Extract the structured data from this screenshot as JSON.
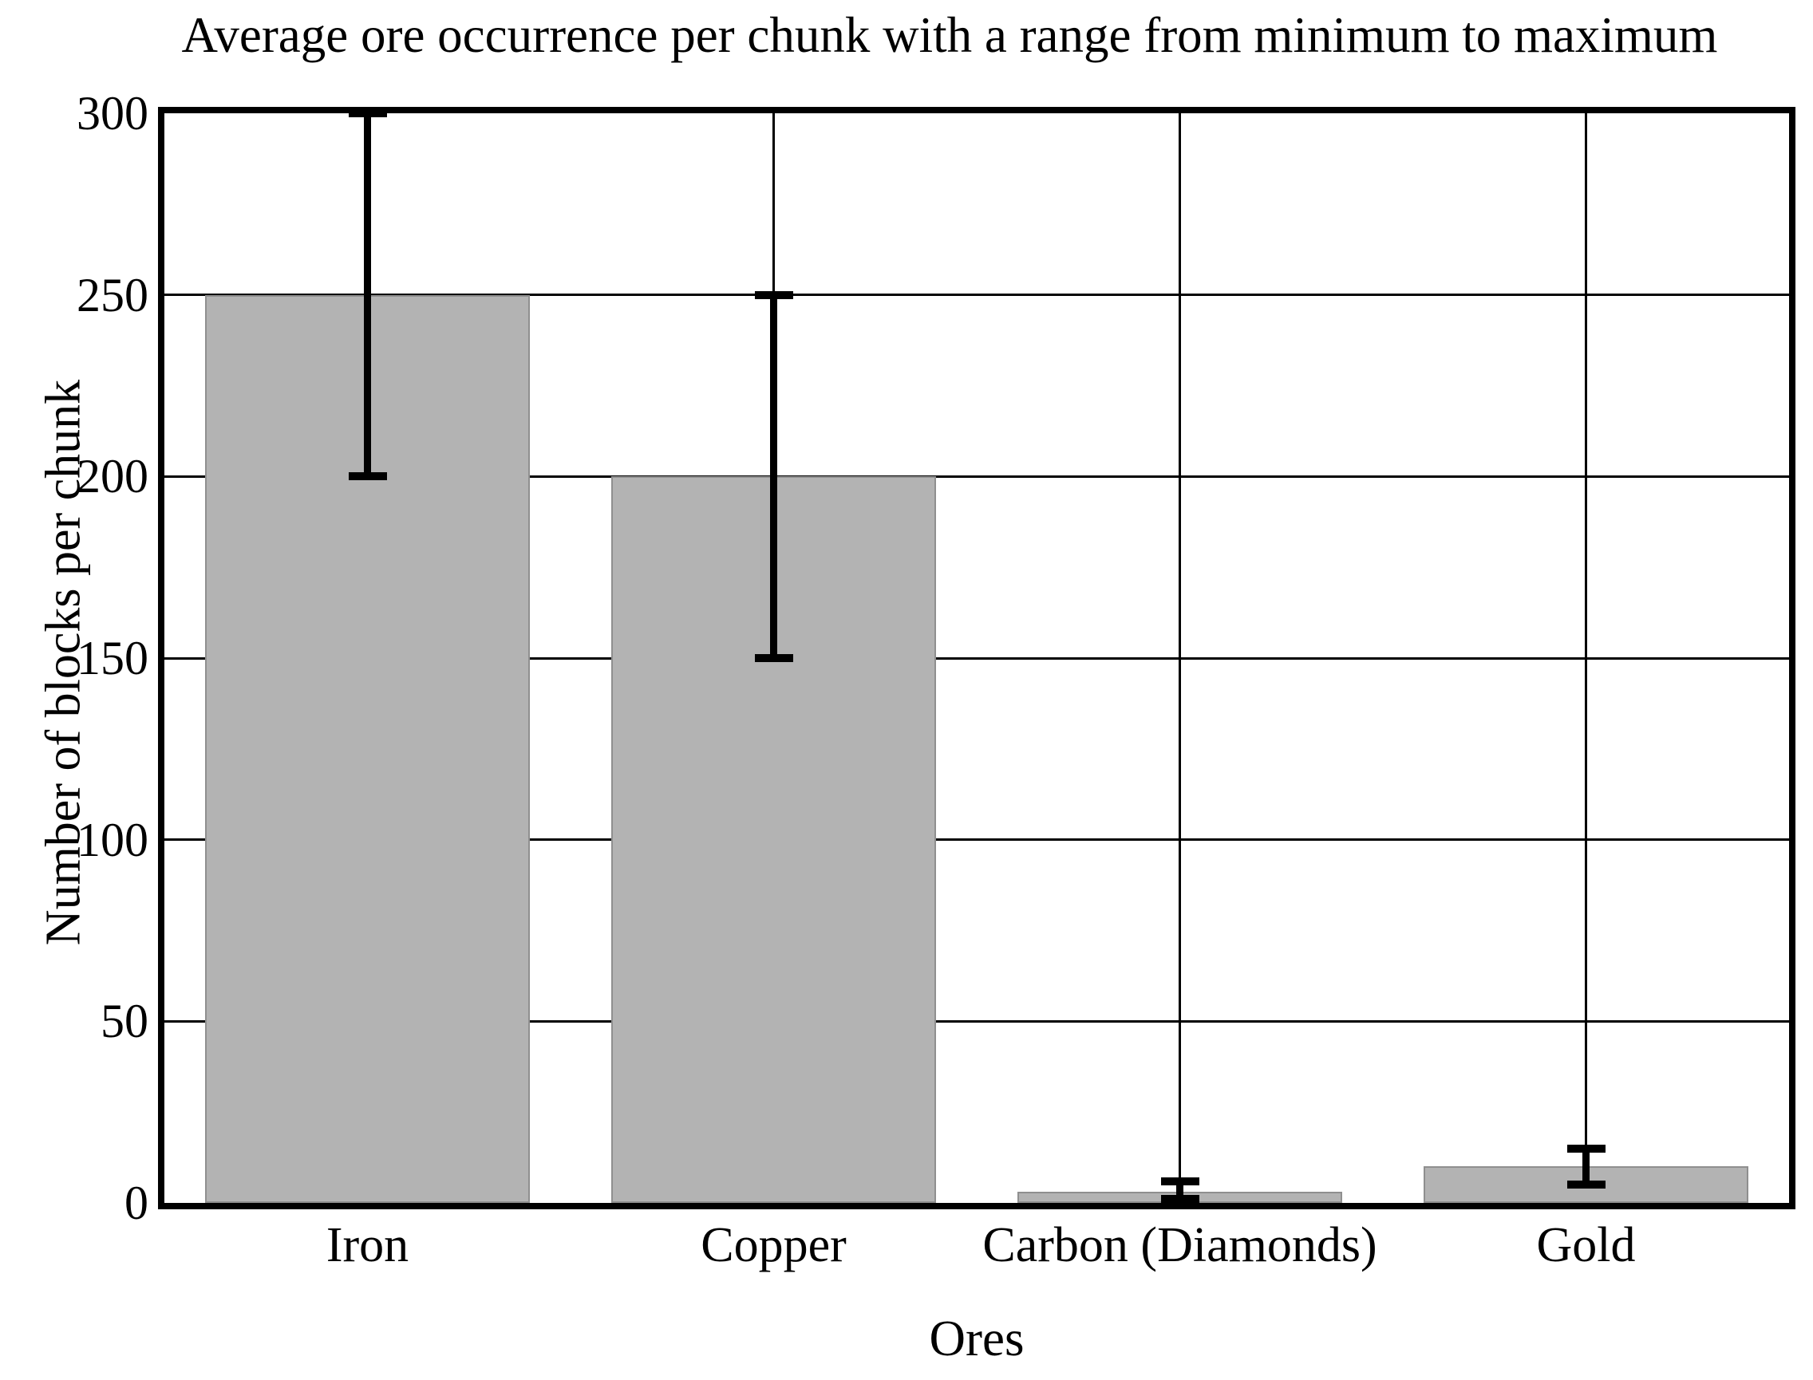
{
  "chart_data": {
    "type": "bar",
    "title": "Average ore occurrence per chunk with a range from minimum to maximum",
    "xlabel": "Ores",
    "ylabel": "Number of blocks per chunk",
    "categories": [
      "Iron",
      "Copper",
      "Carbon (Diamonds)",
      "Gold"
    ],
    "values": [
      250,
      200,
      3,
      10
    ],
    "error_min": [
      200,
      150,
      1,
      5
    ],
    "error_max": [
      300,
      250,
      6,
      15
    ],
    "yticks": [
      0,
      50,
      100,
      150,
      200,
      250,
      300
    ],
    "ylim": [
      0,
      300
    ],
    "grid": "both",
    "legend": "none",
    "bar_color": "#b3b3b3",
    "bar_edge_color": "#8f8f8f",
    "axis_color": "#000000"
  }
}
